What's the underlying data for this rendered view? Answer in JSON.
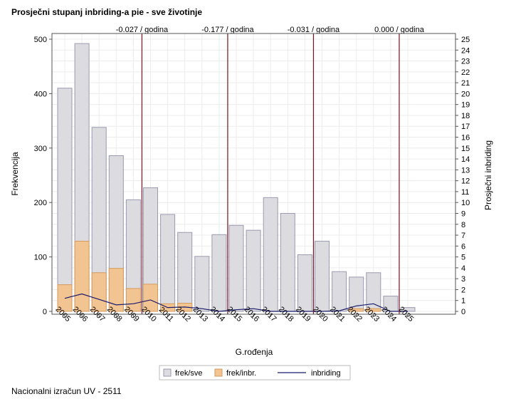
{
  "header": {
    "title": "Prosječni stupanj inbriding-a pie - sve životinje"
  },
  "footer": {
    "text": "Nacionalni izračun UV - 2511"
  },
  "chart_data": {
    "type": "bar",
    "categories": [
      "2005",
      "2006",
      "2007",
      "2008",
      "2009",
      "2010",
      "2011",
      "2012",
      "2013",
      "2014",
      "2015",
      "2016",
      "2017",
      "2018",
      "2019",
      "2020",
      "2021",
      "2022",
      "2023",
      "2024",
      "2025"
    ],
    "series": [
      {
        "name": "frek/sve",
        "type": "bar",
        "axis": "left",
        "color": "#dcdce0",
        "stroke": "#9a9ab0",
        "values": [
          410,
          492,
          338,
          286,
          205,
          227,
          178,
          145,
          101,
          141,
          158,
          149,
          209,
          180,
          104,
          129,
          73,
          63,
          71,
          28,
          7
        ]
      },
      {
        "name": "frek/inbr.",
        "type": "bar",
        "axis": "left",
        "color": "#f2c491",
        "stroke": "#d49a5c",
        "values": [
          49,
          129,
          71,
          79,
          42,
          50,
          14,
          15,
          0,
          0,
          0,
          0,
          0,
          0,
          0,
          0,
          0,
          5,
          5,
          0,
          0
        ]
      },
      {
        "name": "inbriding",
        "type": "line",
        "axis": "right",
        "color": "#1a1a6e",
        "values": [
          1.2,
          1.6,
          1.1,
          0.6,
          0.7,
          1.05,
          0.35,
          0.4,
          0.25,
          0.0,
          0.15,
          0.25,
          0.0,
          0.0,
          0.0,
          0.0,
          0.05,
          0.5,
          0.7,
          0.0,
          0.0
        ]
      }
    ],
    "xlabel": "G.rođenja",
    "ylabel": "Frekvencija",
    "y2label": "Prosječni inbriding",
    "ylim": [
      0,
      500
    ],
    "yticks": [
      0,
      100,
      200,
      300,
      400,
      500
    ],
    "y2lim": [
      0,
      25
    ],
    "y2ticks": [
      0,
      1,
      2,
      3,
      4,
      5,
      6,
      7,
      8,
      9,
      10,
      11,
      12,
      13,
      14,
      15,
      16,
      17,
      18,
      19,
      20,
      21,
      22,
      23,
      24,
      25
    ],
    "grid": true,
    "legend_position": "bottom-center",
    "reference_lines": [
      {
        "x": "2010",
        "label": "-0.027 / godina"
      },
      {
        "x": "2015",
        "label": "-0.177 / godina"
      },
      {
        "x": "2020",
        "label": "-0.031 / godina"
      },
      {
        "x": "2025",
        "label": "0.000 / godina"
      }
    ],
    "ref_line_color": "#7a1020"
  }
}
